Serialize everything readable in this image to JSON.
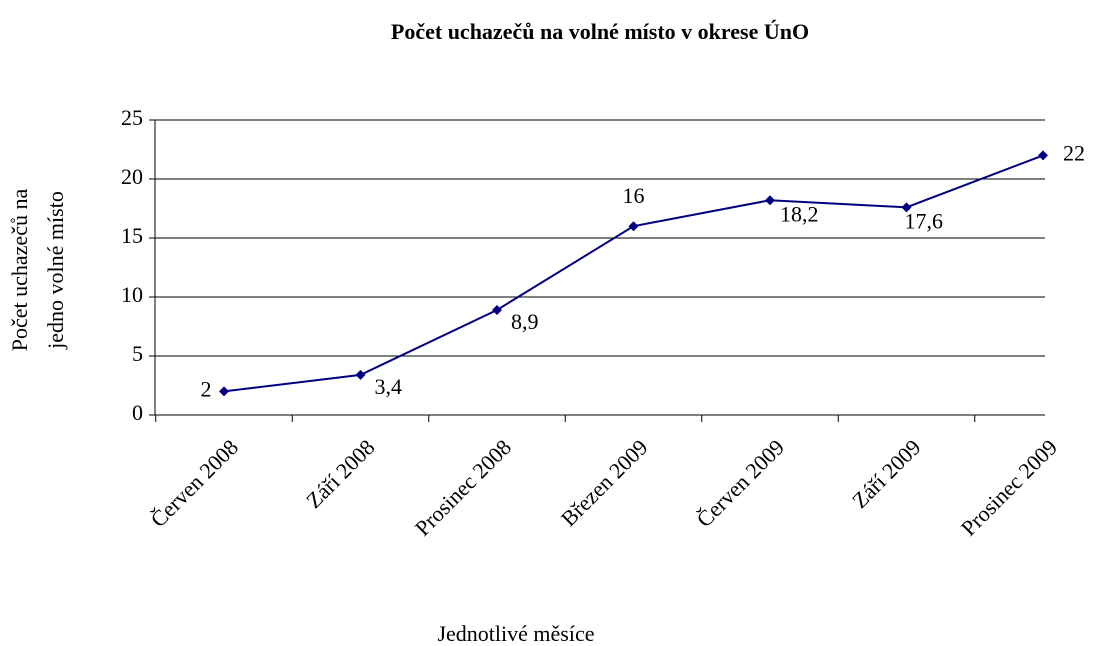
{
  "chart_data": {
    "type": "line",
    "title": "Počet uchazečů na volné místo v okrese ÚnO",
    "x_label": "Jednotlivé měsíce",
    "y_label": [
      "Počet uchazečů na",
      "jedno volné místo"
    ],
    "categories": [
      "Červen 2008",
      "Září 2008",
      "Prosinec 2008",
      "Březen 2009",
      "Červen 2009",
      "Září 2009",
      "Prosinec 2009"
    ],
    "series": [
      {
        "name": "Počet uchazečů",
        "color": "#000080",
        "values": [
          2,
          3.4,
          8.9,
          16,
          18.2,
          17.6,
          22
        ],
        "value_labels": [
          "2",
          "3,4",
          "8,9",
          "16",
          "18,2",
          "17,6",
          "22"
        ]
      }
    ],
    "ylim": [
      0,
      25
    ],
    "yticks": [
      0,
      5,
      10,
      15,
      20,
      25
    ],
    "grid": true
  }
}
